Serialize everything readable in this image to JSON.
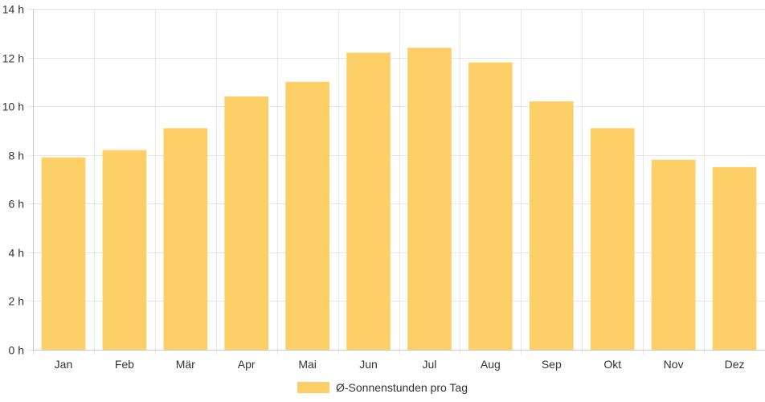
{
  "chart_data": {
    "type": "bar",
    "categories": [
      "Jan",
      "Feb",
      "Mär",
      "Apr",
      "Mai",
      "Jun",
      "Jul",
      "Aug",
      "Sep",
      "Okt",
      "Nov",
      "Dez"
    ],
    "series": [
      {
        "name": "Ø-Sonnenstunden pro Tag",
        "values": [
          7.9,
          8.2,
          9.1,
          10.4,
          11.0,
          12.2,
          12.4,
          11.8,
          10.2,
          9.1,
          7.8,
          7.5
        ]
      }
    ],
    "ylim": [
      0,
      14
    ],
    "yticks": [
      0,
      2,
      4,
      6,
      8,
      10,
      12,
      14
    ],
    "ytick_labels": [
      "0 h",
      "2 h",
      "4 h",
      "6 h",
      "8 h",
      "10 h",
      "12 h",
      "14 h"
    ],
    "grid": true,
    "legend_position": "bottom",
    "bar_color": "#fdcf67",
    "grid_color": "#e6e6e6"
  }
}
